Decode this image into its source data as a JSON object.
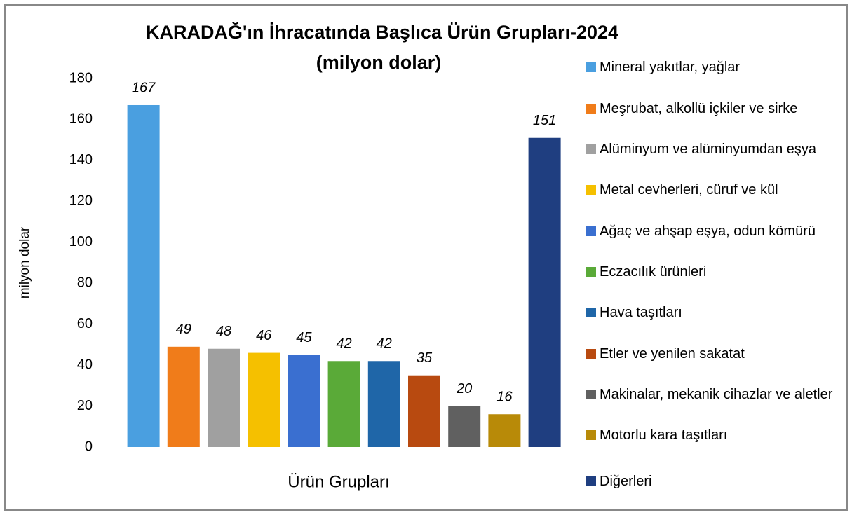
{
  "chart_data": {
    "type": "bar",
    "title": "KARADAĞ'ın İhracatında Başlıca Ürün Grupları-2024",
    "subtitle": "(milyon dolar)",
    "x_label": "Ürün Grupları",
    "y_label": "milyon dolar",
    "categories": [
      "Mineral yakıtlar, yağlar",
      "Meşrubat, alkollü içkiler ve sirke",
      "Alüminyum ve alüminyumdan eşya",
      "Metal cevherleri, cüruf ve kül",
      "Ağaç ve ahşap eşya, odun kömürü",
      "Eczacılık ürünleri",
      "Hava taşıtları",
      "Etler ve yenilen sakatat",
      "Makinalar, mekanik cihazlar ve aletler",
      "Motorlu kara taşıtları",
      "Diğerleri"
    ],
    "values": [
      167,
      49,
      48,
      46,
      45,
      42,
      42,
      35,
      20,
      16,
      151
    ],
    "colors": [
      "#4a9fe0",
      "#f07c1a",
      "#a0a0a0",
      "#f5c000",
      "#3a6fd0",
      "#5aaa38",
      "#1f66a8",
      "#b84a10",
      "#606060",
      "#b88a08",
      "#1f3e80"
    ],
    "ylim": [
      0,
      180
    ],
    "yticks": [
      0,
      20,
      40,
      60,
      80,
      100,
      120,
      140,
      160,
      180
    ],
    "grid": false,
    "legend": "right"
  }
}
